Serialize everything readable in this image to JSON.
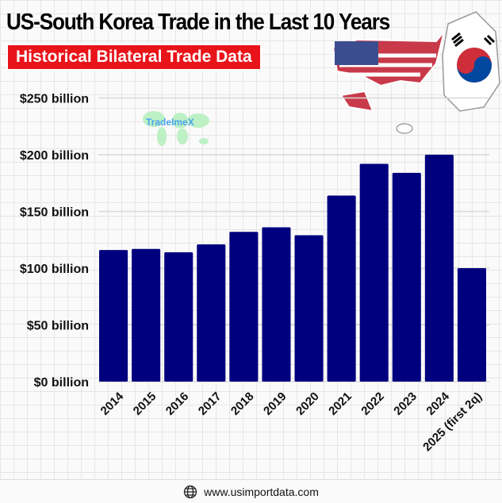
{
  "header": {
    "title": "US-South Korea Trade in the Last 10 Years",
    "subtitle": "Historical Bilateral Trade Data"
  },
  "watermark": {
    "text": "TradeImeX"
  },
  "footer": {
    "url": "www.usimportdata.com",
    "icon": "globe-icon"
  },
  "decorations": [
    "us-flag-map",
    "south-korea-flag-map"
  ],
  "chart_data": {
    "type": "bar",
    "title": "",
    "xlabel": "",
    "ylabel": "",
    "categories": [
      "2014",
      "2015",
      "2016",
      "2017",
      "2018",
      "2019",
      "2020",
      "2021",
      "2022",
      "2023",
      "2024",
      "2025 (first 2q)"
    ],
    "values": [
      116,
      117,
      114,
      121,
      132,
      136,
      129,
      164,
      192,
      184,
      200,
      100
    ],
    "unit": "billion USD",
    "ylim": [
      0,
      250
    ],
    "yticks": [
      0,
      50,
      100,
      150,
      200,
      250
    ],
    "ytick_labels": [
      "$0 billion",
      "$50 billion",
      "$100 billion",
      "$150 billion",
      "$200 billion",
      "$250 billion"
    ],
    "bar_color": "#00007f",
    "grid": true,
    "legend": "none"
  }
}
